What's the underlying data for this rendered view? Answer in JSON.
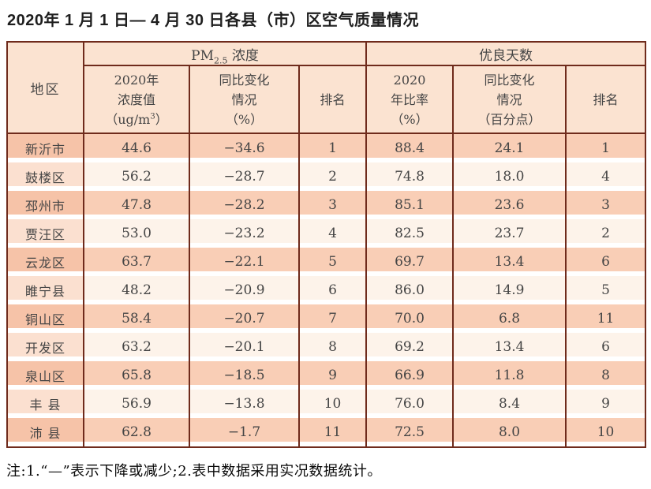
{
  "page": {
    "title": "2020年 1 月 1 日— 4 月 30 日各县（市）区空气质量情况",
    "note": "注:1.“—”表示下降或减少;2.表中数据采用实况数据统计。"
  },
  "colors": {
    "line": "#6f2b1c",
    "header-bg": "#fbe3d1",
    "row-odd": "#f9ceb6",
    "row-odd-region": "#f6c3a8",
    "row-even": "#fdf3ea",
    "row-even-region": "#fbe0d0",
    "text": "#454545",
    "title-text": "#1e1e1e"
  },
  "chart_data": {
    "type": "table",
    "title": "2020年1月1日—4月30日各县（市）区空气质量情况",
    "header": {
      "region": "地区",
      "group_pm": {
        "prefix": "PM",
        "sub": "2.5",
        "suffix": " 浓度"
      },
      "group_days": "优良天数",
      "col_conc": {
        "line1": "2020年",
        "line2": "浓度值",
        "unit_open": "（ug/m",
        "unit_sup": "3",
        "unit_close": "）"
      },
      "col_pm_change": {
        "line1": "同比变化",
        "line2": "情况",
        "line3": "（%）"
      },
      "col_rank_pm": "排名",
      "col_rate": {
        "line1": "2020",
        "line2": "年比率",
        "line3": "（%）"
      },
      "col_days_change": {
        "line1": "同比变化",
        "line2": "情况",
        "line3": "（百分点）"
      },
      "col_rank_days": "排名"
    },
    "rows": [
      {
        "region": "新沂市",
        "conc": "44.6",
        "conc_change": "−34.6",
        "rank_pm": "1",
        "rate": "88.4",
        "rate_change": "24.1",
        "rank_days": "1"
      },
      {
        "region": "鼓楼区",
        "conc": "56.2",
        "conc_change": "−28.7",
        "rank_pm": "2",
        "rate": "74.8",
        "rate_change": "18.0",
        "rank_days": "4"
      },
      {
        "region": "邳州市",
        "conc": "47.8",
        "conc_change": "−28.2",
        "rank_pm": "3",
        "rate": "85.1",
        "rate_change": "23.6",
        "rank_days": "3"
      },
      {
        "region": "贾汪区",
        "conc": "53.0",
        "conc_change": "−23.2",
        "rank_pm": "4",
        "rate": "82.5",
        "rate_change": "23.7",
        "rank_days": "2"
      },
      {
        "region": "云龙区",
        "conc": "63.7",
        "conc_change": "−22.1",
        "rank_pm": "5",
        "rate": "69.7",
        "rate_change": "13.4",
        "rank_days": "6"
      },
      {
        "region": "睢宁县",
        "conc": "48.2",
        "conc_change": "−20.9",
        "rank_pm": "6",
        "rate": "86.0",
        "rate_change": "14.9",
        "rank_days": "5"
      },
      {
        "region": "铜山区",
        "conc": "58.4",
        "conc_change": "−20.7",
        "rank_pm": "7",
        "rate": "70.0",
        "rate_change": "6.8",
        "rank_days": "11"
      },
      {
        "region": "开发区",
        "conc": "63.2",
        "conc_change": "−20.1",
        "rank_pm": "8",
        "rate": "69.2",
        "rate_change": "13.4",
        "rank_days": "6"
      },
      {
        "region": "泉山区",
        "conc": "65.8",
        "conc_change": "−18.5",
        "rank_pm": "9",
        "rate": "66.9",
        "rate_change": "11.8",
        "rank_days": "8"
      },
      {
        "region": "丰 县",
        "conc": "56.9",
        "conc_change": "−13.8",
        "rank_pm": "10",
        "rate": "76.0",
        "rate_change": "8.4",
        "rank_days": "9"
      },
      {
        "region": "沛 县",
        "conc": "62.8",
        "conc_change": "−1.7",
        "rank_pm": "11",
        "rate": "72.5",
        "rate_change": "8.0",
        "rank_days": "10"
      }
    ]
  }
}
